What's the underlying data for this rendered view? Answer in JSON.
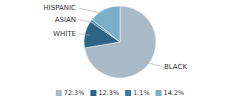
{
  "chart_data": {
    "type": "pie",
    "categories": [
      "BLACK",
      "WHITE",
      "ASIAN",
      "HISPANIC"
    ],
    "values": [
      72.3,
      12.3,
      1.1,
      14.2
    ],
    "value_labels": [
      "72.3%",
      "12.3%",
      "1.1%",
      "14.2%"
    ],
    "colors": [
      "#a8b9c8",
      "#2e6385",
      "#3d7a9e",
      "#7aafc9"
    ]
  }
}
